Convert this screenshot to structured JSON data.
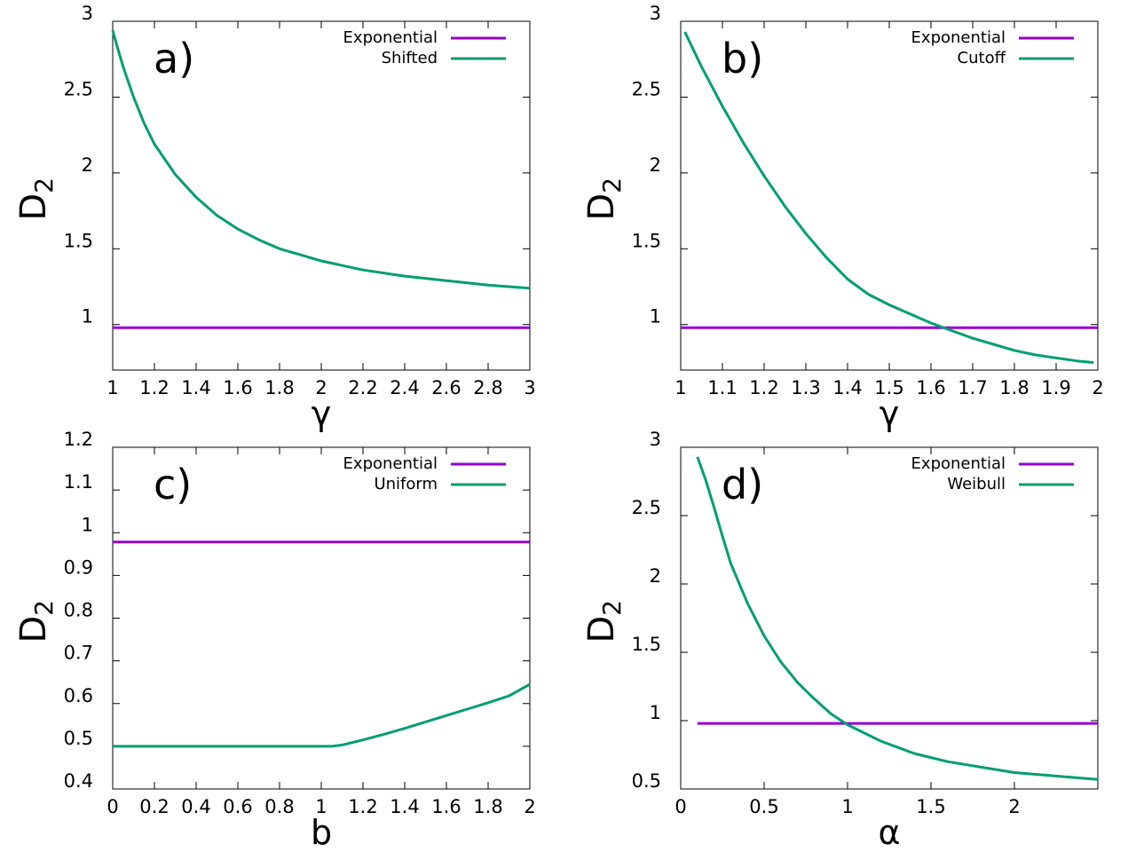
{
  "figure": {
    "panels": [
      {
        "label": "a)",
        "ylabel": "D",
        "ylabel_sub": "2",
        "xlabel": "γ"
      },
      {
        "label": "b)",
        "ylabel": "D",
        "ylabel_sub": "2",
        "xlabel": "γ"
      },
      {
        "label": "c)",
        "ylabel": "D",
        "ylabel_sub": "2",
        "xlabel": "b"
      },
      {
        "label": "d)",
        "ylabel": "D",
        "ylabel_sub": "2",
        "xlabel": "α"
      }
    ]
  },
  "chart_data": [
    {
      "type": "line",
      "title": "a)",
      "xlabel": "γ",
      "ylabel": "D2",
      "xlim": [
        1,
        3
      ],
      "ylim": [
        0.7,
        3
      ],
      "xticks": [
        "1",
        "1.2",
        "1.4",
        "1.6",
        "1.8",
        "2",
        "2.2",
        "2.4",
        "2.6",
        "2.8",
        "3"
      ],
      "yticks": [
        "1",
        "1.5",
        "2",
        "2.5",
        "3"
      ],
      "legend_position": "top-right",
      "series": [
        {
          "name": "Exponential",
          "color": "#9400d3",
          "x": [
            1,
            3
          ],
          "y": [
            0.98,
            0.98
          ]
        },
        {
          "name": "Shifted",
          "color": "#009e73",
          "x": [
            1.0,
            1.02,
            1.05,
            1.1,
            1.15,
            1.2,
            1.3,
            1.4,
            1.5,
            1.6,
            1.7,
            1.8,
            1.9,
            2.0,
            2.2,
            2.4,
            2.6,
            2.8,
            3.0
          ],
          "y": [
            2.94,
            2.84,
            2.7,
            2.5,
            2.33,
            2.19,
            1.99,
            1.84,
            1.72,
            1.63,
            1.56,
            1.5,
            1.46,
            1.42,
            1.36,
            1.32,
            1.29,
            1.26,
            1.24
          ]
        }
      ]
    },
    {
      "type": "line",
      "title": "b)",
      "xlabel": "γ",
      "ylabel": "D2",
      "xlim": [
        1,
        2
      ],
      "ylim": [
        0.7,
        3
      ],
      "xticks": [
        "1",
        "1.1",
        "1.2",
        "1.3",
        "1.4",
        "1.5",
        "1.6",
        "1.7",
        "1.8",
        "1.9",
        "2"
      ],
      "yticks": [
        "1",
        "1.5",
        "2",
        "2.5",
        "3"
      ],
      "legend_position": "top-right",
      "series": [
        {
          "name": "Exponential",
          "color": "#9400d3",
          "x": [
            1,
            2
          ],
          "y": [
            0.98,
            0.98
          ]
        },
        {
          "name": "Cutoff",
          "color": "#009e73",
          "x": [
            1.01,
            1.05,
            1.1,
            1.15,
            1.2,
            1.25,
            1.3,
            1.35,
            1.4,
            1.45,
            1.5,
            1.55,
            1.6,
            1.65,
            1.7,
            1.75,
            1.8,
            1.85,
            1.9,
            1.95,
            1.99
          ],
          "y": [
            2.93,
            2.7,
            2.44,
            2.2,
            1.98,
            1.78,
            1.6,
            1.44,
            1.3,
            1.2,
            1.13,
            1.07,
            1.01,
            0.96,
            0.91,
            0.87,
            0.83,
            0.8,
            0.78,
            0.76,
            0.75
          ]
        }
      ]
    },
    {
      "type": "line",
      "title": "c)",
      "xlabel": "b",
      "ylabel": "D2",
      "xlim": [
        0,
        2
      ],
      "ylim": [
        0.4,
        1.2
      ],
      "xticks": [
        "0",
        "0.2",
        "0.4",
        "0.6",
        "0.8",
        "1",
        "1.2",
        "1.4",
        "1.6",
        "1.8",
        "2"
      ],
      "yticks": [
        "0.4",
        "0.5",
        "0.6",
        "0.7",
        "0.8",
        "0.9",
        "1",
        "1.1",
        "1.2"
      ],
      "legend_position": "top-right",
      "series": [
        {
          "name": "Exponential",
          "color": "#9400d3",
          "x": [
            0,
            2
          ],
          "y": [
            0.978,
            0.978
          ]
        },
        {
          "name": "Uniform",
          "color": "#009e73",
          "x": [
            0,
            0.5,
            1.0,
            1.05,
            1.1,
            1.2,
            1.3,
            1.4,
            1.5,
            1.6,
            1.7,
            1.8,
            1.9,
            2.0
          ],
          "y": [
            0.5,
            0.5,
            0.5,
            0.5,
            0.503,
            0.515,
            0.528,
            0.542,
            0.557,
            0.572,
            0.587,
            0.602,
            0.618,
            0.645
          ]
        }
      ]
    },
    {
      "type": "line",
      "title": "d)",
      "xlabel": "α",
      "ylabel": "D2",
      "xlim": [
        0,
        2.5
      ],
      "ylim": [
        0.5,
        3
      ],
      "xticks": [
        "0",
        "0.5",
        "1",
        "1.5",
        "2"
      ],
      "yticks": [
        "0.5",
        "1",
        "1.5",
        "2",
        "2.5",
        "3"
      ],
      "legend_position": "top-right",
      "series": [
        {
          "name": "Exponential",
          "color": "#9400d3",
          "x": [
            0.1,
            2.5
          ],
          "y": [
            0.98,
            0.98
          ]
        },
        {
          "name": "Weibull",
          "color": "#009e73",
          "x": [
            0.1,
            0.15,
            0.2,
            0.25,
            0.3,
            0.4,
            0.5,
            0.6,
            0.7,
            0.8,
            0.9,
            1.0,
            1.2,
            1.4,
            1.6,
            1.8,
            2.0,
            2.2,
            2.4,
            2.5
          ],
          "y": [
            2.93,
            2.76,
            2.56,
            2.35,
            2.15,
            1.86,
            1.62,
            1.43,
            1.28,
            1.16,
            1.05,
            0.97,
            0.85,
            0.76,
            0.7,
            0.66,
            0.62,
            0.6,
            0.58,
            0.57
          ]
        }
      ]
    }
  ]
}
